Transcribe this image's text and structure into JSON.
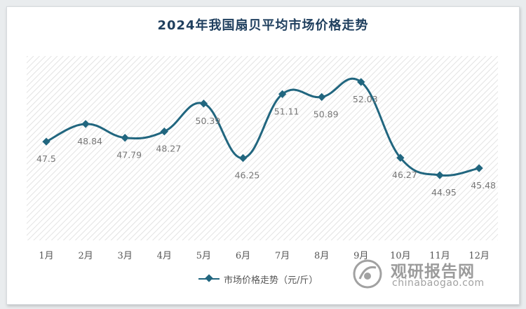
{
  "chart_data": {
    "type": "line",
    "title": "2024年我国扇贝平均市场价格走势",
    "categories": [
      "1月",
      "2月",
      "3月",
      "4月",
      "5月",
      "6月",
      "7月",
      "8月",
      "9月",
      "10月",
      "11月",
      "12月"
    ],
    "series": [
      {
        "name": "市场价格走势（元/斤）",
        "values": [
          47.5,
          48.84,
          47.79,
          48.27,
          50.39,
          46.25,
          51.11,
          50.89,
          52.03,
          46.27,
          44.95,
          45.48
        ],
        "labels": [
          "47.5",
          "48.84",
          "47.79",
          "48.27",
          "50.39",
          "46.25",
          "51.11",
          "50.89",
          "52.03",
          "46.27",
          "44.95",
          "45.48"
        ]
      }
    ],
    "xlabel": "",
    "ylabel": "",
    "ylim": [
      40,
      54
    ],
    "smooth": true,
    "grid": false,
    "legend_position": "bottom",
    "plot_background": "diagonal-hatch",
    "colors": {
      "line": "#21667f",
      "title": "#1f3f5e"
    }
  },
  "watermark": {
    "text_cn": "观研报告网",
    "text_en": "chinabaogao.com"
  }
}
